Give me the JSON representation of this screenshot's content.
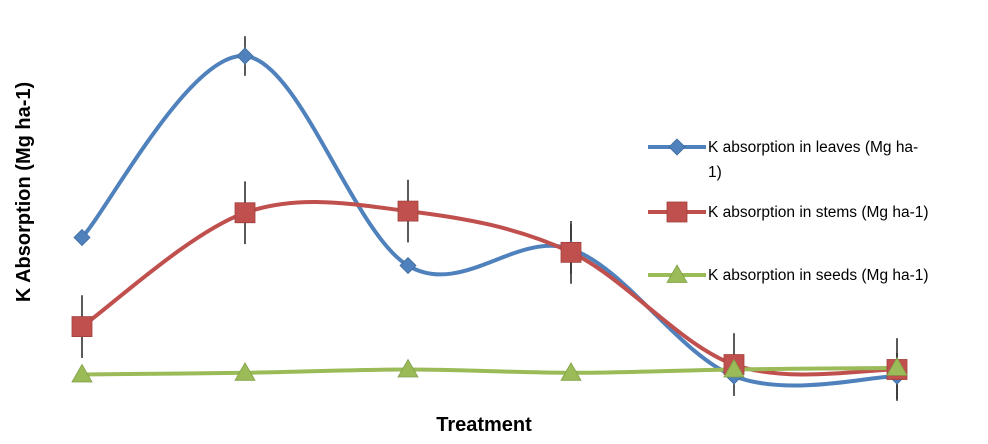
{
  "chart_data": {
    "type": "line",
    "title": "",
    "xlabel": "Treatment",
    "ylabel": "K Absorption (Mg ha-1)",
    "categories": [
      "1",
      "2",
      "3",
      "4",
      "5",
      "6"
    ],
    "show_x_tick_labels": false,
    "show_y_axis": false,
    "ylim": [
      0,
      22
    ],
    "smooth": true,
    "grid": false,
    "legend_position": "right",
    "series": [
      {
        "name": "K absorption in leaves (Mg ha-1)",
        "color": "#4F81BD",
        "marker": "diamond",
        "values": [
          9.0,
          20.0,
          7.3,
          8.3,
          0.6,
          0.6
        ],
        "error": [
          0,
          1.2,
          0,
          1.5,
          0,
          1.4
        ]
      },
      {
        "name": "K absorption in stems (Mg ha-1)",
        "color": "#C0504D",
        "marker": "square",
        "values": [
          3.6,
          10.5,
          10.6,
          8.1,
          1.3,
          1.0
        ],
        "error": [
          1.9,
          1.9,
          1.9,
          1.9,
          1.9,
          1.9
        ]
      },
      {
        "name": "K absorption in seeds (Mg ha-1)",
        "color": "#9BBB59",
        "marker": "triangle",
        "values": [
          0.7,
          0.8,
          1.0,
          0.8,
          1.0,
          1.1
        ],
        "error": [
          0,
          0,
          0,
          0,
          0,
          0
        ]
      }
    ]
  }
}
